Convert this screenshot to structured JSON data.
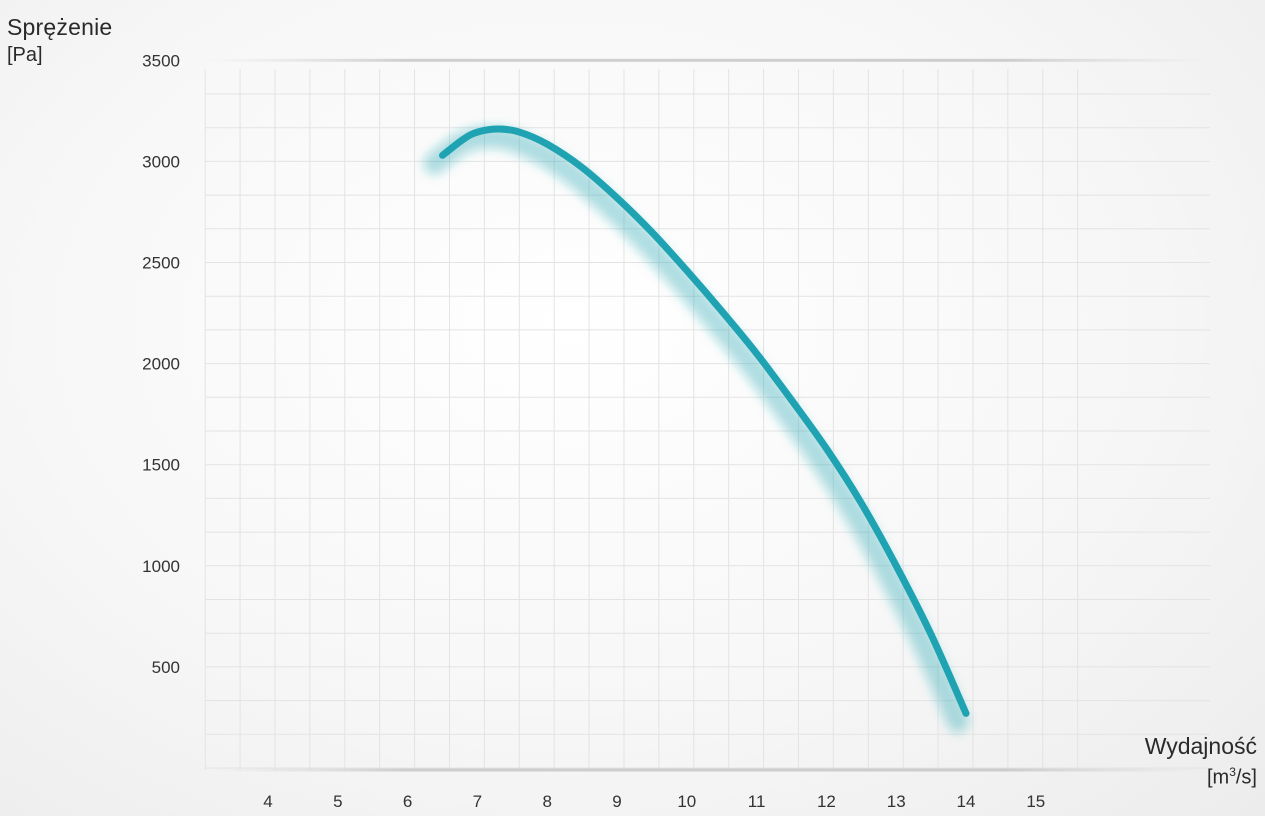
{
  "chart_data": {
    "type": "line",
    "title": "",
    "ylabel": "Sprężenie",
    "ylabel_unit": "[Pa]",
    "xlabel": "Wydajność",
    "xlabel_unit_base": "[m",
    "xlabel_unit_sup": "3",
    "xlabel_unit_tail": "/s]",
    "x_ticks": [
      4,
      5,
      6,
      7,
      8,
      9,
      10,
      11,
      12,
      13,
      14,
      15
    ],
    "y_ticks": [
      500,
      1000,
      1500,
      2000,
      2500,
      3000,
      3500
    ],
    "xlim": [
      3.1,
      15.8
    ],
    "ylim": [
      0,
      3500
    ],
    "grid": true,
    "line_color": "#1fa3b3",
    "series": [
      {
        "x": [
          6.5,
          6.8,
          7.0,
          7.3,
          7.6,
          8.0,
          8.5,
          9.0,
          9.5,
          10.0,
          10.5,
          11.0,
          11.5,
          12.0,
          12.5,
          13.0,
          13.5,
          14.0
        ],
        "y": [
          3030,
          3110,
          3145,
          3160,
          3145,
          3085,
          2970,
          2820,
          2650,
          2460,
          2260,
          2050,
          1820,
          1580,
          1310,
          1000,
          660,
          270
        ]
      }
    ]
  }
}
